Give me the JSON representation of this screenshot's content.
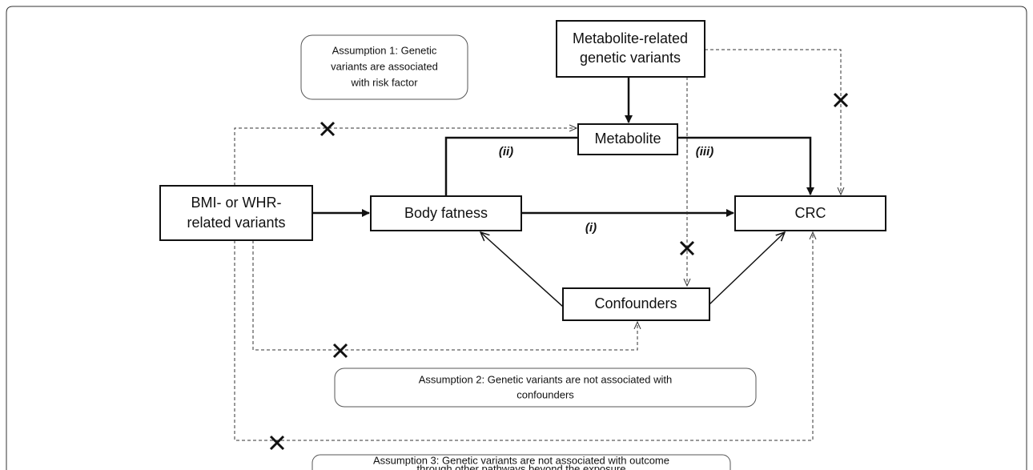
{
  "nodes": [
    {
      "label": [
        "Metabolite-related",
        "genetic variants"
      ]
    },
    {
      "label": [
        "Metabolite"
      ]
    },
    {
      "label": [
        "BMI- or WHR-",
        "related variants"
      ]
    },
    {
      "label": [
        "Body fatness"
      ]
    },
    {
      "label": [
        "CRC"
      ]
    },
    {
      "label": [
        "Confounders"
      ]
    }
  ],
  "path_labels": [
    "(i)",
    "(ii)",
    "(iii)"
  ],
  "assumptions": [
    {
      "text": [
        "Assumption 1: Genetic",
        "variants are associated",
        "with risk factor"
      ]
    },
    {
      "text": [
        "Assumption 2: Genetic variants are not associated with",
        "confounders"
      ]
    },
    {
      "text": [
        "Assumption 3: Genetic variants are not associated with outcome",
        "through other pathways beyond the exposure"
      ]
    }
  ]
}
